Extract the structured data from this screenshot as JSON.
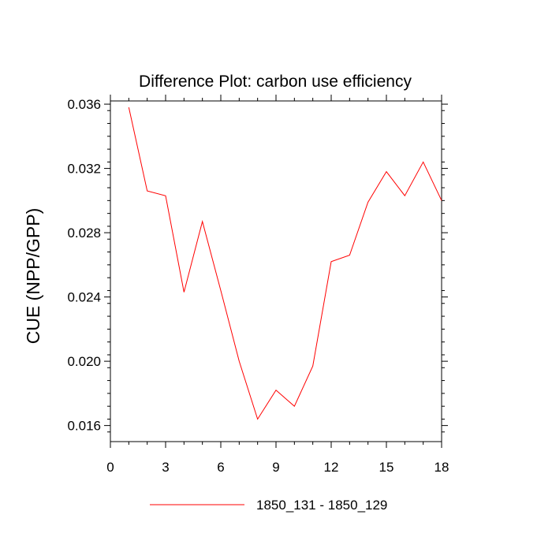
{
  "chart_data": {
    "type": "line",
    "title": "Difference Plot: carbon use efficiency",
    "xlabel": "",
    "ylabel": "CUE  (NPP/GPP)",
    "xlim": [
      0,
      18
    ],
    "ylim": [
      0.015,
      0.0362
    ],
    "x_ticks": [
      0,
      3,
      6,
      9,
      12,
      15,
      18
    ],
    "x_tick_labels": [
      "0",
      "3",
      "6",
      "9",
      "12",
      "15",
      "18"
    ],
    "y_ticks": [
      0.016,
      0.02,
      0.024,
      0.028,
      0.032,
      0.036
    ],
    "y_tick_labels": [
      "0.016",
      "0.020",
      "0.024",
      "0.028",
      "0.032",
      "0.036"
    ],
    "grid": false,
    "legend_position": "bottom",
    "series": [
      {
        "name": "1850_131 - 1850_129",
        "color": "#ff0000",
        "x": [
          1,
          2,
          3,
          4,
          5,
          6,
          7,
          8,
          9,
          10,
          11,
          12,
          13,
          14,
          15,
          16,
          17,
          18
        ],
        "y": [
          0.0358,
          0.0306,
          0.0303,
          0.0243,
          0.0287,
          0.0244,
          0.02,
          0.0164,
          0.0182,
          0.0172,
          0.0197,
          0.0262,
          0.0266,
          0.0299,
          0.0318,
          0.0303,
          0.0324,
          0.03
        ]
      }
    ]
  }
}
